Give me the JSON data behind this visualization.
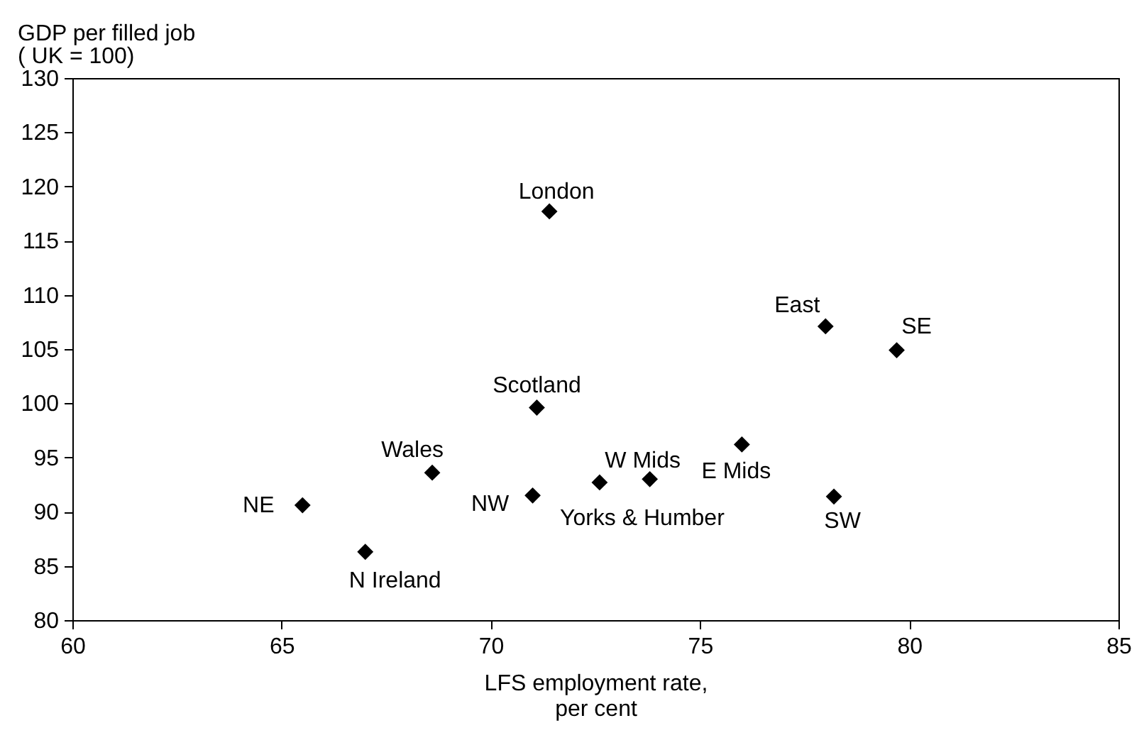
{
  "chart_data": {
    "type": "scatter",
    "xlabel": "LFS employment rate,\nper cent",
    "ylabel": "GDP per filled job\n( UK = 100)",
    "xlim": [
      60,
      85
    ],
    "xticks": [
      60,
      65,
      70,
      75,
      80,
      85
    ],
    "ylim": [
      80,
      130
    ],
    "yticks": [
      80,
      85,
      90,
      95,
      100,
      105,
      110,
      115,
      120,
      125,
      130
    ],
    "marker": "diamond",
    "grid": false,
    "legend": false,
    "series": [
      {
        "name": "London",
        "color": "#000000",
        "x": [
          71.4
        ],
        "values": [
          117.7
        ]
      },
      {
        "name": "Scotland",
        "color": "#000000",
        "x": [
          71.1
        ],
        "values": [
          99.6
        ]
      },
      {
        "name": "Wales",
        "color": "#000000",
        "x": [
          68.6
        ],
        "values": [
          93.6
        ]
      },
      {
        "name": "NE",
        "color": "#000000",
        "x": [
          65.5
        ],
        "values": [
          90.6
        ]
      },
      {
        "name": "N Ireland",
        "color": "#000000",
        "x": [
          67.0
        ],
        "values": [
          86.3
        ]
      },
      {
        "name": "NW",
        "color": "#000000",
        "x": [
          71.0
        ],
        "values": [
          91.5
        ]
      },
      {
        "name": "Yorks & Humber",
        "color": "#000000",
        "x": [
          72.6
        ],
        "values": [
          92.7
        ]
      },
      {
        "name": "W Mids",
        "color": "#000000",
        "x": [
          73.8
        ],
        "values": [
          93.0
        ]
      },
      {
        "name": "E Mids",
        "color": "#000000",
        "x": [
          76.0
        ],
        "values": [
          96.2
        ]
      },
      {
        "name": "East",
        "color": "#000000",
        "x": [
          78.0
        ],
        "values": [
          107.1
        ]
      },
      {
        "name": "SE",
        "color": "#000000",
        "x": [
          79.7
        ],
        "values": [
          104.9
        ]
      },
      {
        "name": "SW",
        "color": "#000000",
        "x": [
          78.2
        ],
        "values": [
          91.4
        ]
      }
    ]
  }
}
